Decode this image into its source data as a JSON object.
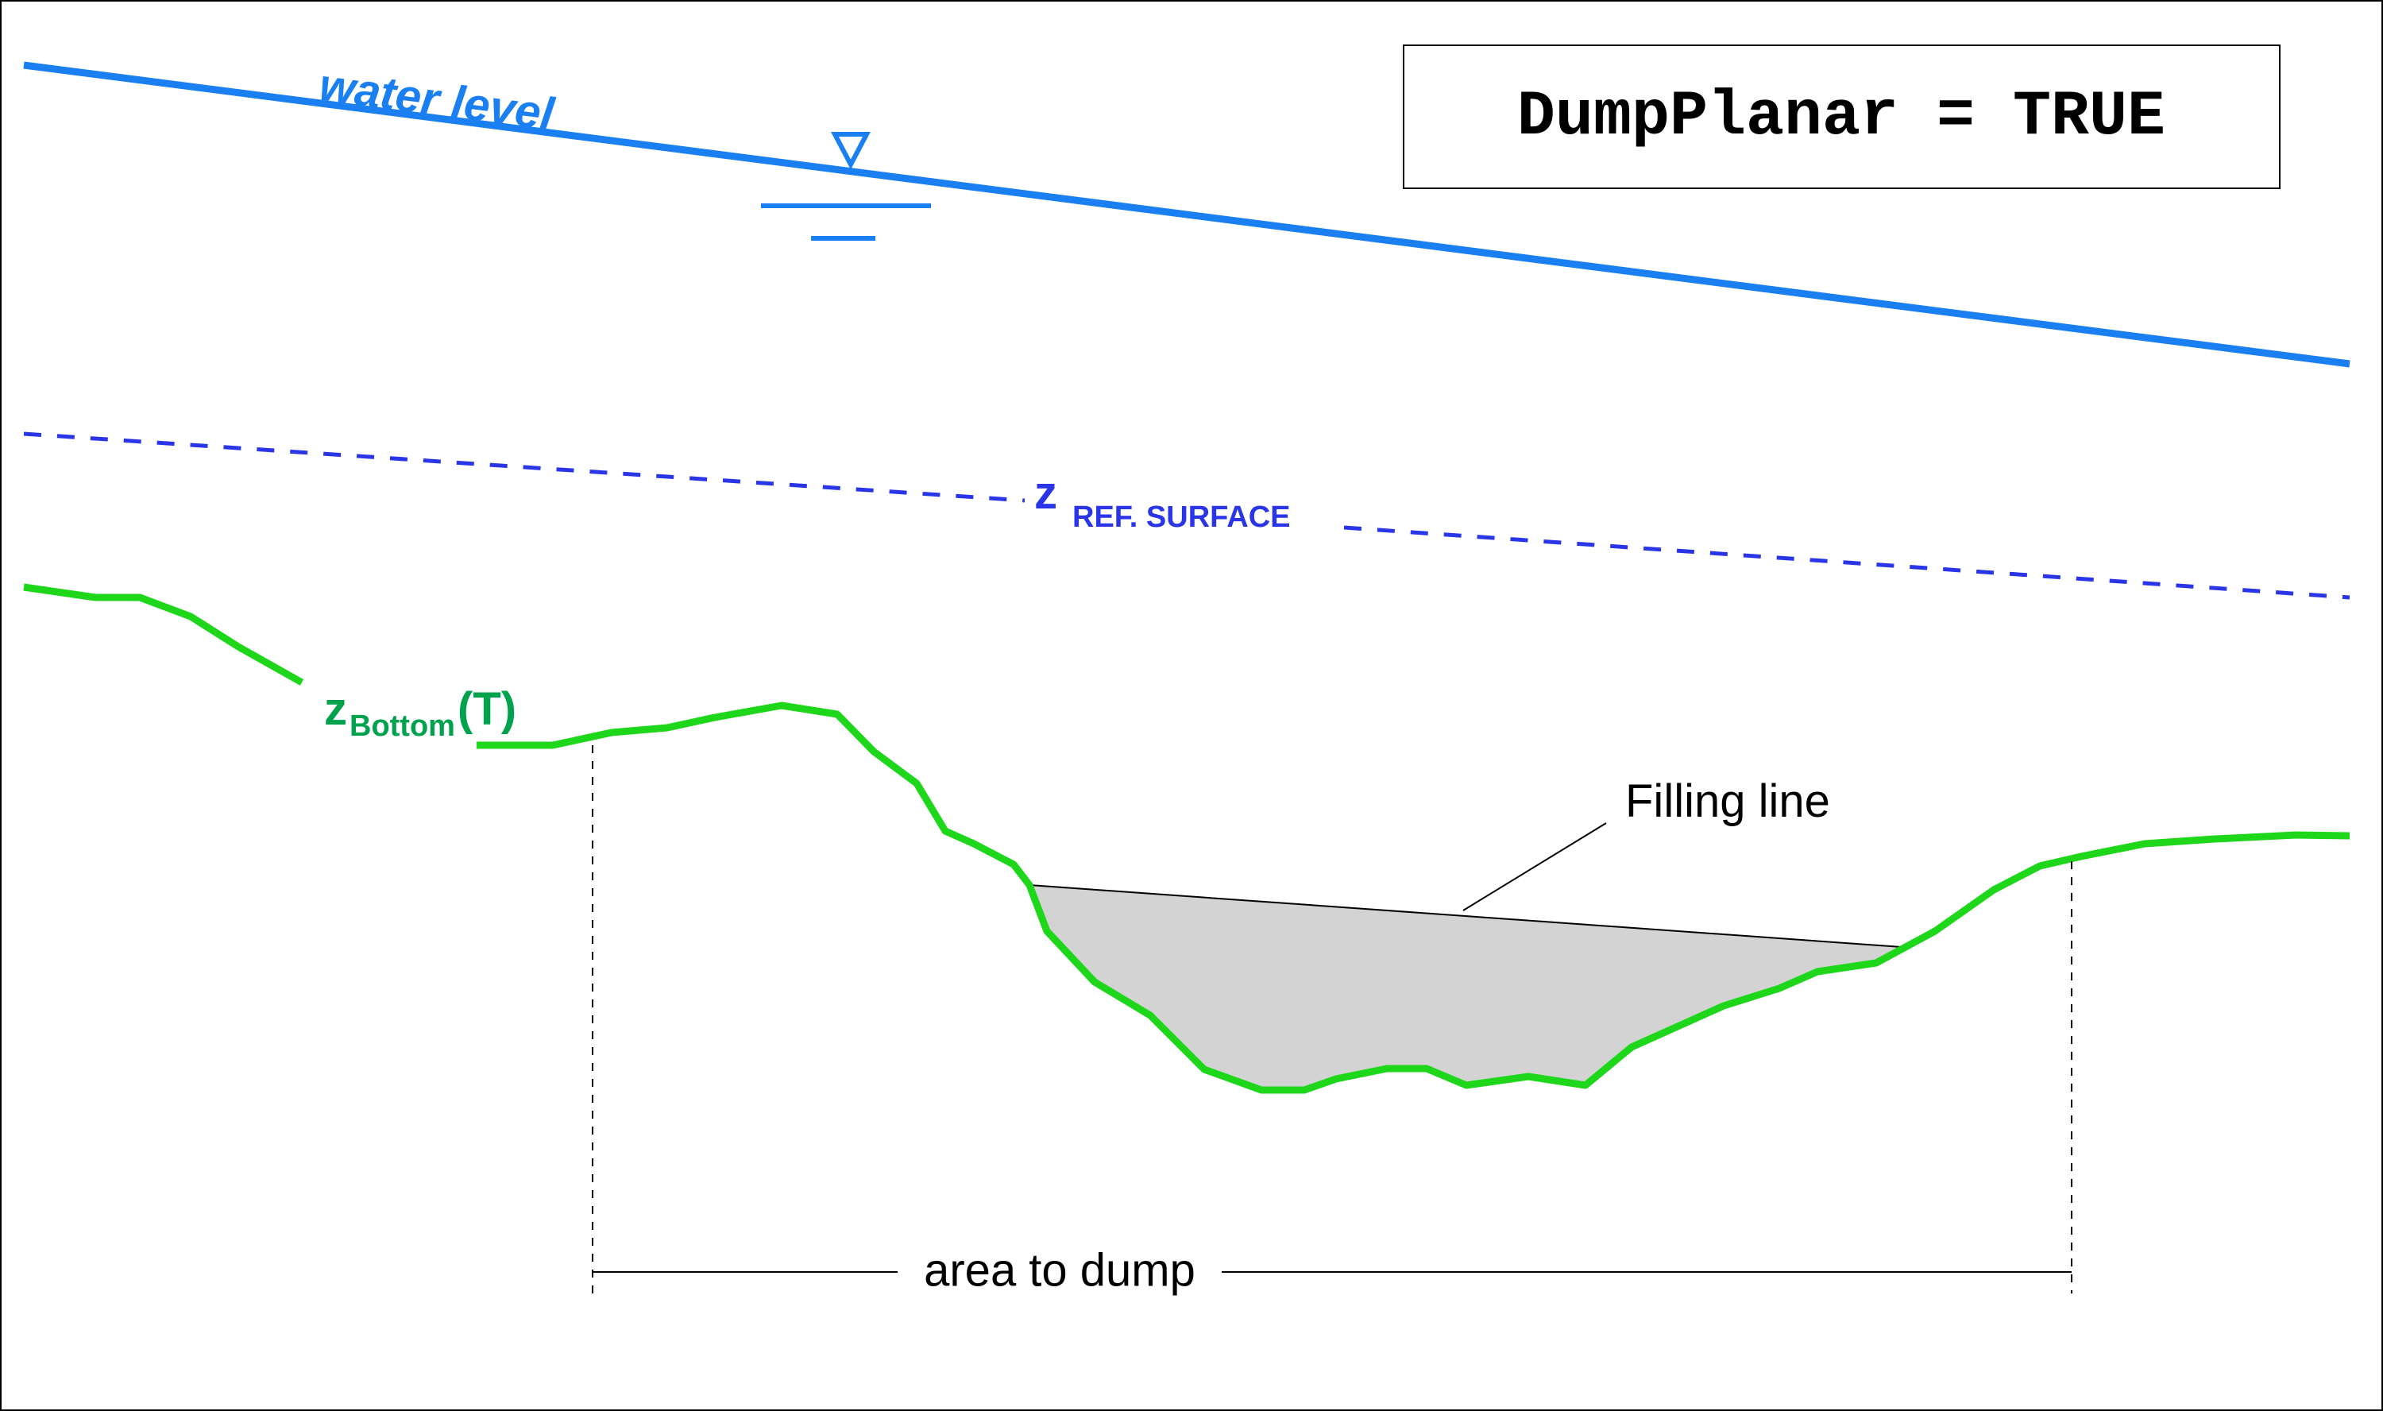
{
  "diagram": {
    "title_box": {
      "text": "DumpPlanar = TRUE"
    },
    "water_level": {
      "label": "water level",
      "color": "#1a7ff0"
    },
    "reference_surface": {
      "symbol": "z",
      "subscript": "REF. SURFACE",
      "color": "#2a35e8"
    },
    "bottom": {
      "symbol": "z",
      "subscript": "Bottom",
      "suffix": "(T)",
      "label_color": "#00a24e",
      "line_color": "#1ed61a"
    },
    "filling_line": {
      "label": "Filling line",
      "fill_color": "#d3d3d3"
    },
    "area": {
      "label": "area to dump"
    }
  }
}
